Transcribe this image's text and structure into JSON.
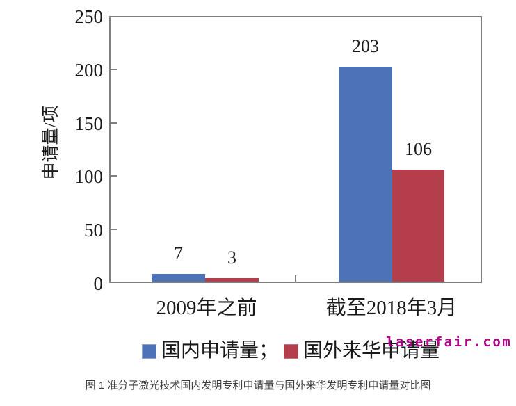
{
  "figure": {
    "caption": "图 1 准分子激光技术国内发明专利申请量与国外来华发明专利申请量对比图",
    "watermark": "laserfair.com"
  },
  "chart_data": {
    "type": "bar",
    "title": "",
    "xlabel": "",
    "ylabel": "申请量/项",
    "categories": [
      "2009年之前",
      "截至2018年3月"
    ],
    "series": [
      {
        "name": "国内申请量",
        "color": "#4d73b6",
        "values": [
          7,
          203
        ]
      },
      {
        "name": "国外来华申请量",
        "color": "#b43e4c",
        "values": [
          3,
          106
        ]
      }
    ],
    "ylim": [
      0,
      250
    ],
    "yticks": [
      250,
      200,
      150,
      100,
      50,
      0
    ],
    "grid": false,
    "legend_position": "bottom",
    "legend_labels": [
      "国内申请量；",
      "国外来华申请量"
    ],
    "axis_color": "#7f7f7f",
    "text_color": "#1a1a1a",
    "caption_color": "#3d3d3d",
    "watermark_color": "#b4008c"
  }
}
